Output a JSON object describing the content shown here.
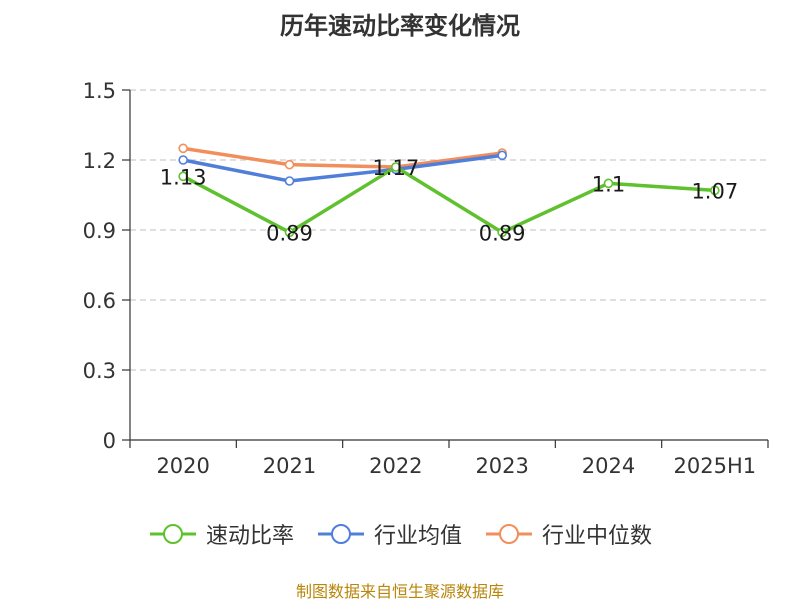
{
  "chart_data": {
    "type": "line",
    "title": "历年速动比率变化情况",
    "categories": [
      "2020",
      "2021",
      "2022",
      "2023",
      "2024",
      "2025H1"
    ],
    "ylim": [
      0,
      1.5
    ],
    "yticks": [
      "0",
      "0.3",
      "0.6",
      "0.9",
      "1.2",
      "1.5"
    ],
    "grid": true,
    "legend_position": "bottom",
    "series": [
      {
        "name": "速动比率",
        "color": "#5ec12d",
        "values": [
          1.13,
          0.89,
          1.17,
          0.89,
          1.1,
          1.07
        ],
        "labels": [
          "1.13",
          "0.89",
          "1.17",
          "0.89",
          "1.1",
          "1.07"
        ]
      },
      {
        "name": "行业均值",
        "color": "#4f7fd9",
        "values": [
          1.2,
          1.11,
          1.16,
          1.22,
          null,
          null
        ]
      },
      {
        "name": "行业中位数",
        "color": "#f28e5b",
        "values": [
          1.25,
          1.18,
          1.17,
          1.23,
          null,
          null
        ]
      }
    ]
  },
  "source_note": "制图数据来自恒生聚源数据库"
}
